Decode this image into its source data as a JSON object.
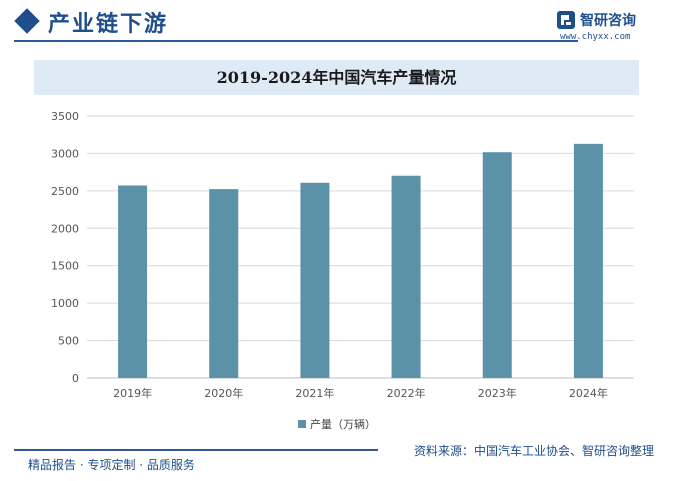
{
  "header": {
    "title": "产业链下游",
    "brand_name": "智研咨询",
    "brand_url": "www.chyxx.com"
  },
  "chart_data": {
    "type": "bar",
    "title": "2019-2024年中国汽车产量情况",
    "categories": [
      "2019年",
      "2020年",
      "2021年",
      "2022年",
      "2023年",
      "2024年"
    ],
    "series": [
      {
        "name": "产量（万辆）",
        "values": [
          2572,
          2523,
          2608,
          2702,
          3016,
          3128
        ]
      }
    ],
    "ylim": [
      0,
      3500
    ],
    "yticks": [
      0,
      500,
      1000,
      1500,
      2000,
      2500,
      3000,
      3500
    ],
    "ytick_labels": [
      "0",
      "500",
      "1000",
      "1500",
      "2000",
      "2500",
      "3000",
      "3500"
    ],
    "grid": true,
    "legend": "bottom",
    "color": "#5b92a8"
  },
  "source": "资料来源：中国汽车工业协会、智研咨询整理",
  "footer": "精品报告 · 专项定制 · 品质服务",
  "colors": {
    "brand": "#1f4e8c",
    "bar": "#5b92a8",
    "title_band": "#deeaf5"
  }
}
